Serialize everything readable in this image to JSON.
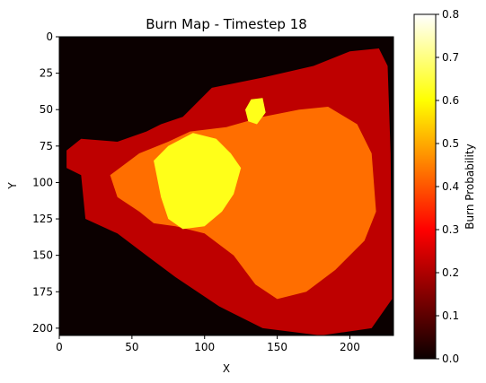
{
  "chart_data": {
    "type": "heatmap",
    "title": "Burn Map - Timestep 18",
    "xlabel": "X",
    "ylabel": "Y",
    "xlim": [
      0,
      230
    ],
    "ylim": [
      205,
      0
    ],
    "xticks": [
      0,
      50,
      100,
      150,
      200
    ],
    "yticks": [
      0,
      25,
      50,
      75,
      100,
      125,
      150,
      175,
      200
    ],
    "colormap": "hot",
    "colorbar": {
      "label": "Burn Probability",
      "range": [
        0.0,
        0.8
      ],
      "ticks": [
        "0.0",
        "0.1",
        "0.2",
        "0.3",
        "0.4",
        "0.5",
        "0.6",
        "0.7",
        "0.8"
      ]
    },
    "grid": false,
    "regions": [
      {
        "name": "unburned",
        "value": 0.0,
        "note": "background"
      },
      {
        "name": "outer burned area",
        "value": 0.22,
        "polygon": [
          [
            5,
            78
          ],
          [
            15,
            70
          ],
          [
            40,
            72
          ],
          [
            60,
            65
          ],
          [
            70,
            60
          ],
          [
            85,
            55
          ],
          [
            105,
            35
          ],
          [
            140,
            28
          ],
          [
            175,
            20
          ],
          [
            200,
            10
          ],
          [
            220,
            8
          ],
          [
            226,
            20
          ],
          [
            228,
            80
          ],
          [
            229,
            180
          ],
          [
            215,
            200
          ],
          [
            180,
            205
          ],
          [
            140,
            200
          ],
          [
            110,
            185
          ],
          [
            80,
            165
          ],
          [
            60,
            150
          ],
          [
            40,
            135
          ],
          [
            18,
            125
          ],
          [
            15,
            95
          ],
          [
            5,
            90
          ]
        ]
      },
      {
        "name": "northwest lobe",
        "value": 0.22,
        "polygon": [
          [
            120,
            48
          ],
          [
            155,
            35
          ],
          [
            170,
            28
          ],
          [
            175,
            40
          ],
          [
            160,
            55
          ],
          [
            135,
            60
          ],
          [
            120,
            58
          ]
        ]
      },
      {
        "name": "middle zone",
        "value": 0.43,
        "polygon": [
          [
            40,
            110
          ],
          [
            35,
            95
          ],
          [
            55,
            80
          ],
          [
            75,
            72
          ],
          [
            90,
            65
          ],
          [
            115,
            62
          ],
          [
            140,
            55
          ],
          [
            165,
            50
          ],
          [
            185,
            48
          ],
          [
            205,
            60
          ],
          [
            215,
            80
          ],
          [
            218,
            120
          ],
          [
            210,
            140
          ],
          [
            190,
            160
          ],
          [
            170,
            175
          ],
          [
            150,
            180
          ],
          [
            135,
            170
          ],
          [
            120,
            150
          ],
          [
            100,
            135
          ],
          [
            80,
            130
          ],
          [
            65,
            128
          ],
          [
            55,
            120
          ]
        ]
      },
      {
        "name": "high zone",
        "value": 0.62,
        "polygon": [
          [
            70,
            110
          ],
          [
            65,
            85
          ],
          [
            75,
            75
          ],
          [
            92,
            66
          ],
          [
            108,
            70
          ],
          [
            118,
            80
          ],
          [
            125,
            90
          ],
          [
            120,
            108
          ],
          [
            112,
            120
          ],
          [
            100,
            130
          ],
          [
            85,
            132
          ],
          [
            75,
            125
          ]
        ]
      },
      {
        "name": "northern hotspot",
        "value": 0.62,
        "polygon": [
          [
            128,
            50
          ],
          [
            132,
            43
          ],
          [
            140,
            42
          ],
          [
            142,
            52
          ],
          [
            136,
            60
          ],
          [
            130,
            58
          ]
        ]
      }
    ]
  }
}
